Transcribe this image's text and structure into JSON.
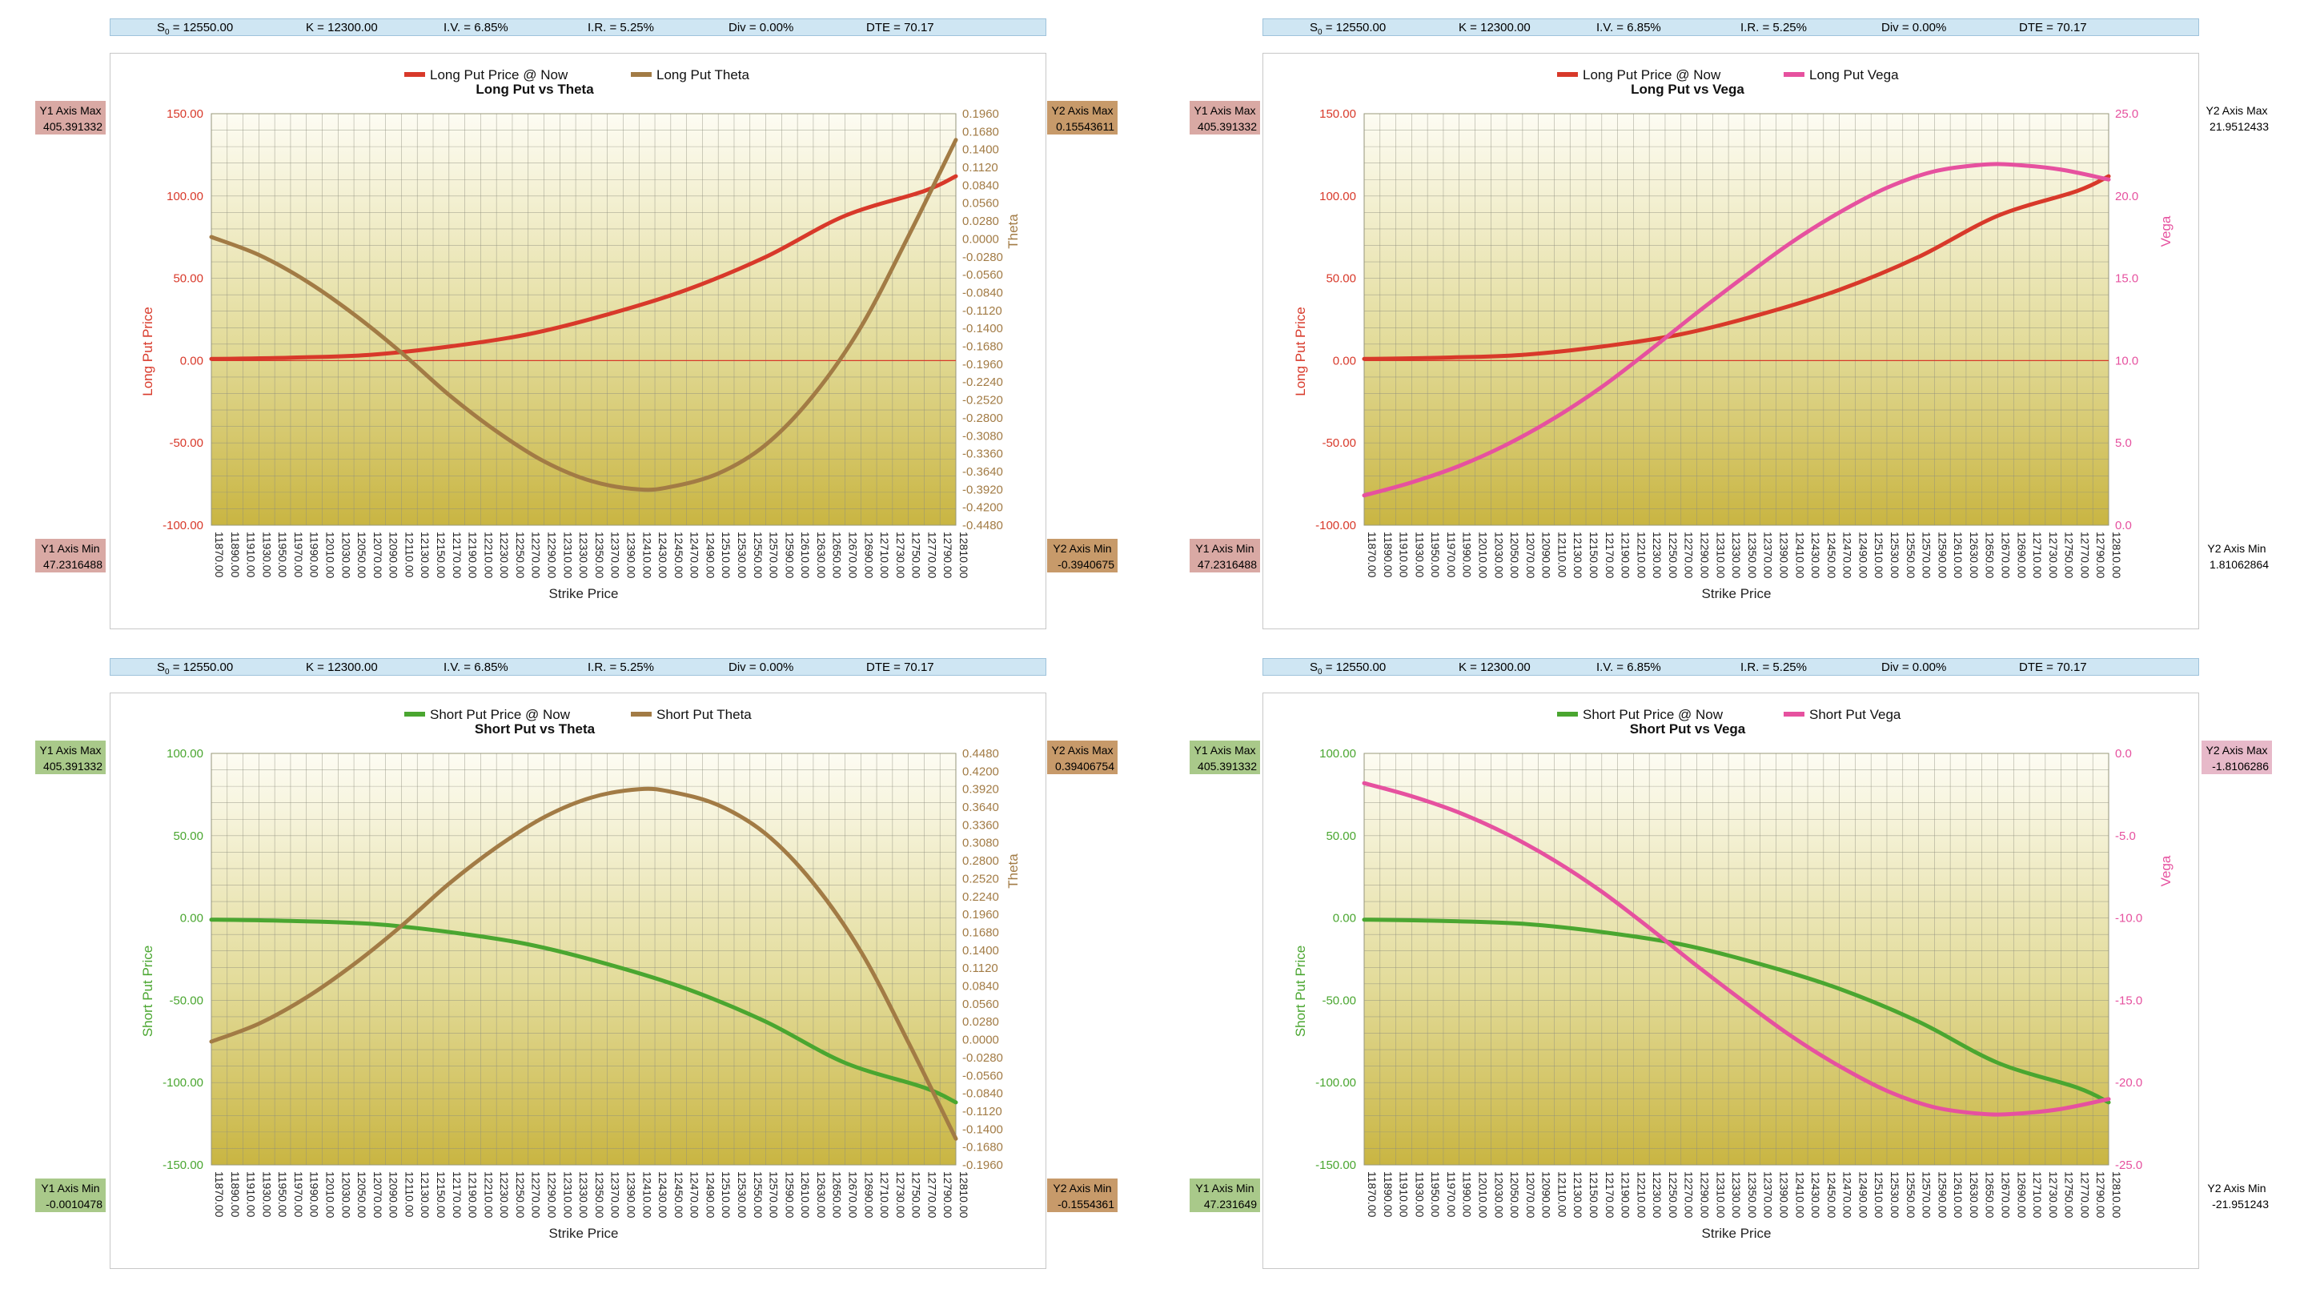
{
  "param_bars": [
    {
      "s0_label": "S",
      "s0_sub": "0",
      "s0_value": " = 12550.00",
      "k": "K = 12300.00",
      "iv": "I.V. = 6.85%",
      "ir": "I.R. = 5.25%",
      "div": "Div = 0.00%",
      "dte": "DTE = 70.17"
    },
    {
      "s0_label": "S",
      "s0_sub": "0",
      "s0_value": " = 12550.00",
      "k": "K = 12300.00",
      "iv": "I.V. = 6.85%",
      "ir": "I.R. = 5.25%",
      "div": "Div = 0.00%",
      "dte": "DTE = 70.17"
    },
    {
      "s0_label": "S",
      "s0_sub": "0",
      "s0_value": " = 12550.00",
      "k": "K = 12300.00",
      "iv": "I.V. = 6.85%",
      "ir": "I.R. = 5.25%",
      "div": "Div = 0.00%",
      "dte": "DTE = 70.17"
    },
    {
      "s0_label": "S",
      "s0_sub": "0",
      "s0_value": " = 12550.00",
      "k": "K = 12300.00",
      "iv": "I.V. = 6.85%",
      "ir": "I.R. = 5.25%",
      "div": "Div = 0.00%",
      "dte": "DTE = 70.17"
    }
  ],
  "side_boxes": [
    {
      "title": "Y1 Axis Max",
      "value": "405.391332",
      "color": "#d9a9a4"
    },
    {
      "title": "Y1 Axis Min",
      "value": "47.2316488",
      "color": "#d9a9a4"
    },
    {
      "title": "Y2 Axis Max",
      "value": "0.15543611",
      "color": "#c79a6a"
    },
    {
      "title": "Y2 Axis Min",
      "value": "-0.3940675",
      "color": "#c79a6a"
    },
    {
      "title": "Y1 Axis Max",
      "value": "405.391332",
      "color": "#d9a9a4"
    },
    {
      "title": "Y1 Axis Min",
      "value": "47.2316488",
      "color": "#d9a9a4"
    },
    {
      "title": "Y2 Axis Max",
      "value": "21.9512433",
      "color": "#ffffff"
    },
    {
      "title": "Y2 Axis Min",
      "value": "1.81062864",
      "color": "#ffffff"
    },
    {
      "title": "Y1 Axis Max",
      "value": "405.391332",
      "color": "#a9c98a"
    },
    {
      "title": "Y1 Axis Min",
      "value": "-0.0010478",
      "color": "#a9c98a"
    },
    {
      "title": "Y2 Axis Max",
      "value": "0.39406754",
      "color": "#c79a6a"
    },
    {
      "title": "Y2 Axis Min",
      "value": "-0.1554361",
      "color": "#c79a6a"
    },
    {
      "title": "Y1 Axis Max",
      "value": "405.391332",
      "color": "#a9c98a"
    },
    {
      "title": "Y1 Axis Min",
      "value": "47.231649",
      "color": "#a9c98a"
    },
    {
      "title": "Y2 Axis Max",
      "value": "-1.8106286",
      "color": "#e7b9c9"
    },
    {
      "title": "Y2 Axis Min",
      "value": "-21.951243",
      "color": "#ffffff"
    }
  ],
  "chart_data": [
    {
      "type": "line",
      "title": "Long Put vs Theta",
      "xlabel": "Strike Price",
      "ylabel": "Long Put Price",
      "y2label": "Theta",
      "x_ticks": [
        "11870.00",
        "11890.00",
        "11910.00",
        "11930.00",
        "11950.00",
        "11970.00",
        "11990.00",
        "12010.00",
        "12030.00",
        "12050.00",
        "12070.00",
        "12090.00",
        "12110.00",
        "12130.00",
        "12150.00",
        "12170.00",
        "12190.00",
        "12210.00",
        "12230.00",
        "12250.00",
        "12270.00",
        "12290.00",
        "12310.00",
        "12330.00",
        "12350.00",
        "12370.00",
        "12390.00",
        "12410.00",
        "12430.00",
        "12450.00",
        "12470.00",
        "12490.00",
        "12510.00",
        "12530.00",
        "12550.00",
        "12570.00",
        "12590.00",
        "12610.00",
        "12630.00",
        "12650.00",
        "12670.00",
        "12690.00",
        "12710.00",
        "12730.00",
        "12750.00",
        "12770.00",
        "12790.00",
        "12810.00"
      ],
      "ylim": [
        -100,
        150
      ],
      "y_ticks": [
        "150.00",
        "100.00",
        "50.00",
        "0.00",
        "-50.00",
        "-100.00"
      ],
      "y2lim": [
        -0.448,
        0.196
      ],
      "y2_ticks": [
        "0.1960",
        "0.1680",
        "0.1400",
        "0.1120",
        "0.0840",
        "0.0560",
        "0.0280",
        "0.0000",
        "-0.0280",
        "-0.0560",
        "-0.0840",
        "-0.1120",
        "-0.1400",
        "-0.1680",
        "-0.1960",
        "-0.2240",
        "-0.2520",
        "-0.2800",
        "-0.3080",
        "-0.3360",
        "-0.3640",
        "-0.3920",
        "-0.4200",
        "-0.4480"
      ],
      "zero_line": "y1",
      "series": [
        {
          "name": "Long Put Price @ Now",
          "axis": "y1",
          "color": "#d8392a",
          "x": [
            11870,
            11970,
            12070,
            12170,
            12270,
            12370,
            12470,
            12570,
            12670,
            12770,
            12810
          ],
          "values": [
            1.0,
            1.8,
            3.5,
            8.5,
            16,
            28,
            43,
            63,
            88,
            103,
            112
          ]
        },
        {
          "name": "Long Put Theta",
          "axis": "y2",
          "color": "#a27b45",
          "x": [
            11870,
            11930,
            11990,
            12050,
            12110,
            12170,
            12230,
            12290,
            12350,
            12410,
            12450,
            12510,
            12570,
            12630,
            12690,
            12750,
            12810
          ],
          "values": [
            0.003,
            -0.025,
            -0.066,
            -0.118,
            -0.178,
            -0.244,
            -0.301,
            -0.348,
            -0.379,
            -0.392,
            -0.388,
            -0.367,
            -0.322,
            -0.245,
            -0.138,
            0.004,
            0.155
          ]
        }
      ],
      "legend": "top-center"
    },
    {
      "type": "line",
      "title": "Long Put vs Vega",
      "xlabel": "Strike Price",
      "ylabel": "Long Put Price",
      "y2label": "Vega",
      "x_ticks": [
        "11870.00",
        "11890.00",
        "11910.00",
        "11930.00",
        "11950.00",
        "11970.00",
        "11990.00",
        "12010.00",
        "12030.00",
        "12050.00",
        "12070.00",
        "12090.00",
        "12110.00",
        "12130.00",
        "12150.00",
        "12170.00",
        "12190.00",
        "12210.00",
        "12230.00",
        "12250.00",
        "12270.00",
        "12290.00",
        "12310.00",
        "12330.00",
        "12350.00",
        "12370.00",
        "12390.00",
        "12410.00",
        "12430.00",
        "12450.00",
        "12470.00",
        "12490.00",
        "12510.00",
        "12530.00",
        "12550.00",
        "12570.00",
        "12590.00",
        "12610.00",
        "12630.00",
        "12650.00",
        "12670.00",
        "12690.00",
        "12710.00",
        "12730.00",
        "12750.00",
        "12770.00",
        "12790.00",
        "12810.00"
      ],
      "ylim": [
        -100,
        150
      ],
      "y_ticks": [
        "150.00",
        "100.00",
        "50.00",
        "0.00",
        "-50.00",
        "-100.00"
      ],
      "y2lim": [
        0,
        25
      ],
      "y2_ticks": [
        "25.0",
        "20.0",
        "15.0",
        "10.0",
        "5.0",
        "0.0"
      ],
      "zero_line": "y1",
      "series": [
        {
          "name": "Long Put Price @ Now",
          "axis": "y1",
          "color": "#d8392a",
          "x": [
            11870,
            11970,
            12070,
            12170,
            12270,
            12370,
            12470,
            12570,
            12670,
            12770,
            12810
          ],
          "values": [
            1.0,
            1.8,
            3.5,
            8.5,
            16,
            28,
            43,
            63,
            88,
            103,
            112
          ]
        },
        {
          "name": "Long Put Vega",
          "axis": "y2",
          "color": "#e6519f",
          "x": [
            11870,
            11930,
            11990,
            12050,
            12110,
            12170,
            12230,
            12290,
            12350,
            12410,
            12470,
            12530,
            12590,
            12650,
            12690,
            12750,
            12810
          ],
          "values": [
            1.81,
            2.6,
            3.6,
            4.9,
            6.5,
            8.4,
            10.6,
            12.9,
            15.1,
            17.2,
            19.0,
            20.5,
            21.5,
            21.9,
            21.9,
            21.6,
            21.0
          ]
        }
      ],
      "legend": "top-center"
    },
    {
      "type": "line",
      "title": "Short Put vs Theta",
      "xlabel": "Strike Price",
      "ylabel": "Short Put Price",
      "y2label": "Theta",
      "x_ticks": [
        "11870.00",
        "11890.00",
        "11910.00",
        "11930.00",
        "11950.00",
        "11970.00",
        "11990.00",
        "12010.00",
        "12030.00",
        "12050.00",
        "12070.00",
        "12090.00",
        "12110.00",
        "12130.00",
        "12150.00",
        "12170.00",
        "12190.00",
        "12210.00",
        "12230.00",
        "12250.00",
        "12270.00",
        "12290.00",
        "12310.00",
        "12330.00",
        "12350.00",
        "12370.00",
        "12390.00",
        "12410.00",
        "12430.00",
        "12450.00",
        "12470.00",
        "12490.00",
        "12510.00",
        "12530.00",
        "12550.00",
        "12570.00",
        "12590.00",
        "12610.00",
        "12630.00",
        "12650.00",
        "12670.00",
        "12690.00",
        "12710.00",
        "12730.00",
        "12750.00",
        "12770.00",
        "12790.00",
        "12810.00"
      ],
      "ylim": [
        -150,
        100
      ],
      "y_ticks": [
        "100.00",
        "50.00",
        "0.00",
        "-50.00",
        "-100.00",
        "-150.00"
      ],
      "y2lim": [
        -0.196,
        0.448
      ],
      "y2_ticks": [
        "0.4480",
        "0.4200",
        "0.3920",
        "0.3640",
        "0.3360",
        "0.3080",
        "0.2800",
        "0.2520",
        "0.2240",
        "0.1960",
        "0.1680",
        "0.1400",
        "0.1120",
        "0.0840",
        "0.0560",
        "0.0280",
        "0.0000",
        "-0.0280",
        "-0.0560",
        "-0.0840",
        "-0.1120",
        "-0.1400",
        "-0.1680",
        "-0.1960"
      ],
      "zero_line": "none",
      "series": [
        {
          "name": "Short Put Price @ Now",
          "axis": "y1",
          "color": "#4aa630",
          "x": [
            11870,
            11970,
            12070,
            12170,
            12270,
            12370,
            12470,
            12570,
            12670,
            12770,
            12810
          ],
          "values": [
            -1.0,
            -1.8,
            -3.5,
            -8.5,
            -16,
            -28,
            -43,
            -63,
            -88,
            -103,
            -112
          ]
        },
        {
          "name": "Short Put Theta",
          "axis": "y2",
          "color": "#a27b45",
          "x": [
            11870,
            11930,
            11990,
            12050,
            12110,
            12170,
            12230,
            12290,
            12350,
            12410,
            12450,
            12510,
            12570,
            12630,
            12690,
            12750,
            12810
          ],
          "values": [
            -0.003,
            0.025,
            0.066,
            0.118,
            0.178,
            0.244,
            0.301,
            0.348,
            0.379,
            0.392,
            0.388,
            0.367,
            0.322,
            0.245,
            0.138,
            -0.004,
            -0.155
          ]
        }
      ],
      "legend": "top-center"
    },
    {
      "type": "line",
      "title": "Short Put vs Vega",
      "xlabel": "Strike Price",
      "ylabel": "Short Put Price",
      "y2label": "Vega",
      "x_ticks": [
        "11870.00",
        "11890.00",
        "11910.00",
        "11930.00",
        "11950.00",
        "11970.00",
        "11990.00",
        "12010.00",
        "12030.00",
        "12050.00",
        "12070.00",
        "12090.00",
        "12110.00",
        "12130.00",
        "12150.00",
        "12170.00",
        "12190.00",
        "12210.00",
        "12230.00",
        "12250.00",
        "12270.00",
        "12290.00",
        "12310.00",
        "12330.00",
        "12350.00",
        "12370.00",
        "12390.00",
        "12410.00",
        "12430.00",
        "12450.00",
        "12470.00",
        "12490.00",
        "12510.00",
        "12530.00",
        "12550.00",
        "12570.00",
        "12590.00",
        "12610.00",
        "12630.00",
        "12650.00",
        "12670.00",
        "12690.00",
        "12710.00",
        "12730.00",
        "12750.00",
        "12770.00",
        "12790.00",
        "12810.00"
      ],
      "ylim": [
        -150,
        100
      ],
      "y_ticks": [
        "100.00",
        "50.00",
        "0.00",
        "-50.00",
        "-100.00",
        "-150.00"
      ],
      "y2lim": [
        -25,
        0
      ],
      "y2_ticks": [
        "0.0",
        "-5.0",
        "-10.0",
        "-15.0",
        "-20.0",
        "-25.0"
      ],
      "zero_line": "none",
      "series": [
        {
          "name": "Short Put Price @ Now",
          "axis": "y1",
          "color": "#4aa630",
          "x": [
            11870,
            11970,
            12070,
            12170,
            12270,
            12370,
            12470,
            12570,
            12670,
            12770,
            12810
          ],
          "values": [
            -1.0,
            -1.8,
            -3.5,
            -8.5,
            -16,
            -28,
            -43,
            -63,
            -88,
            -103,
            -112
          ]
        },
        {
          "name": "Short Put Vega",
          "axis": "y2",
          "color": "#e6519f",
          "x": [
            11870,
            11930,
            11990,
            12050,
            12110,
            12170,
            12230,
            12290,
            12350,
            12410,
            12470,
            12530,
            12590,
            12650,
            12690,
            12750,
            12810
          ],
          "values": [
            -1.81,
            -2.6,
            -3.6,
            -4.9,
            -6.5,
            -8.4,
            -10.6,
            -12.9,
            -15.1,
            -17.2,
            -19.0,
            -20.5,
            -21.5,
            -21.9,
            -21.9,
            -21.6,
            -21.0
          ]
        }
      ],
      "legend": "top-center"
    }
  ]
}
